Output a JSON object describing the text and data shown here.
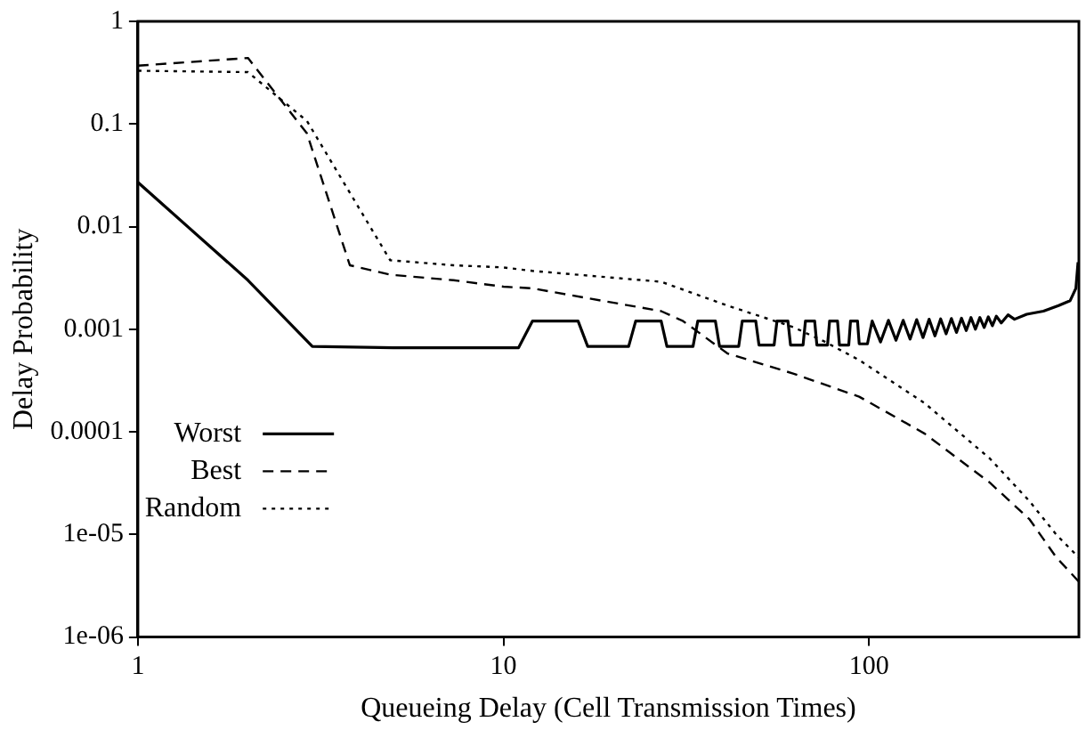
{
  "chart_data": {
    "type": "line",
    "xlabel": "Queueing Delay (Cell Transmission Times)",
    "ylabel": "Delay Probability",
    "log": "xy",
    "grid": false,
    "legend": "bottom left",
    "marker": "none",
    "xlim": [
      1,
      375
    ],
    "xticks": [
      1,
      10,
      100
    ],
    "ylim": [
      1e-06,
      1
    ],
    "yticks": [
      1,
      0.1,
      0.01,
      0.001,
      0.0001,
      {
        "value": 1e-05,
        "label": "1e-05"
      },
      {
        "value": 1e-06,
        "label": "1e-06"
      }
    ],
    "series": [
      {
        "name": "Worst",
        "color": "#000000",
        "line_style": "solid",
        "x": [
          1,
          2,
          3,
          5,
          11,
          12,
          16,
          17,
          22,
          23,
          27,
          28,
          33,
          34,
          38,
          39,
          44,
          45,
          49,
          50,
          55,
          56,
          60,
          61,
          66,
          67,
          71,
          72,
          77,
          78,
          82,
          83,
          88,
          89,
          93,
          94,
          99,
          102,
          107.5,
          113,
          118.5,
          124,
          129.5,
          135,
          140.5,
          146,
          151.5,
          157,
          162.5,
          168,
          173.5,
          179,
          184.5,
          190,
          195.5,
          201,
          206.5,
          212,
          217.5,
          223,
          230,
          240,
          250,
          270,
          300,
          330,
          355,
          368,
          373
        ],
        "values": [
          0.027,
          0.003,
          0.00068,
          0.00066,
          0.00066,
          0.0012,
          0.0012,
          0.00068,
          0.00068,
          0.0012,
          0.0012,
          0.00068,
          0.00068,
          0.0012,
          0.0012,
          0.00068,
          0.00068,
          0.0012,
          0.0012,
          0.0007,
          0.0007,
          0.0012,
          0.0012,
          0.0007,
          0.0007,
          0.0012,
          0.0012,
          0.0007,
          0.0007,
          0.0012,
          0.0012,
          0.0007,
          0.0007,
          0.0012,
          0.0012,
          0.00072,
          0.00072,
          0.0012,
          0.00075,
          0.00122,
          0.00078,
          0.00122,
          0.0008,
          0.00124,
          0.00083,
          0.00125,
          0.00086,
          0.00126,
          0.0009,
          0.00127,
          0.00093,
          0.00128,
          0.00097,
          0.0013,
          0.001,
          0.0013,
          0.00104,
          0.00132,
          0.00108,
          0.00134,
          0.00115,
          0.00138,
          0.00125,
          0.0014,
          0.0015,
          0.0017,
          0.0019,
          0.0025,
          0.0045
        ]
      },
      {
        "name": "Best",
        "color": "#000000",
        "line_style": "dashed",
        "x": [
          1,
          2,
          2.9,
          3.8,
          4.9,
          7.3,
          10,
          12,
          27,
          31,
          41,
          62,
          94,
          142,
          214,
          275,
          325,
          374
        ],
        "values": [
          0.37,
          0.44,
          0.081,
          0.0042,
          0.0034,
          0.003,
          0.0026,
          0.0025,
          0.0015,
          0.0012,
          0.00058,
          0.00037,
          0.00022,
          9.6e-05,
          3.2e-05,
          1.4e-05,
          6e-06,
          3.5e-06
        ]
      },
      {
        "name": "Random",
        "color": "#000000",
        "line_style": "dotted",
        "x": [
          1,
          2,
          2.9,
          4.9,
          7.3,
          10,
          12,
          27,
          41,
          62,
          76,
          94,
          142,
          214,
          275,
          325,
          374
        ],
        "values": [
          0.33,
          0.32,
          0.107,
          0.0047,
          0.0042,
          0.004,
          0.0037,
          0.0029,
          0.0017,
          0.00105,
          0.00075,
          0.0005,
          0.00019,
          5.5e-05,
          2.1e-05,
          1e-05,
          6e-06
        ]
      }
    ]
  }
}
